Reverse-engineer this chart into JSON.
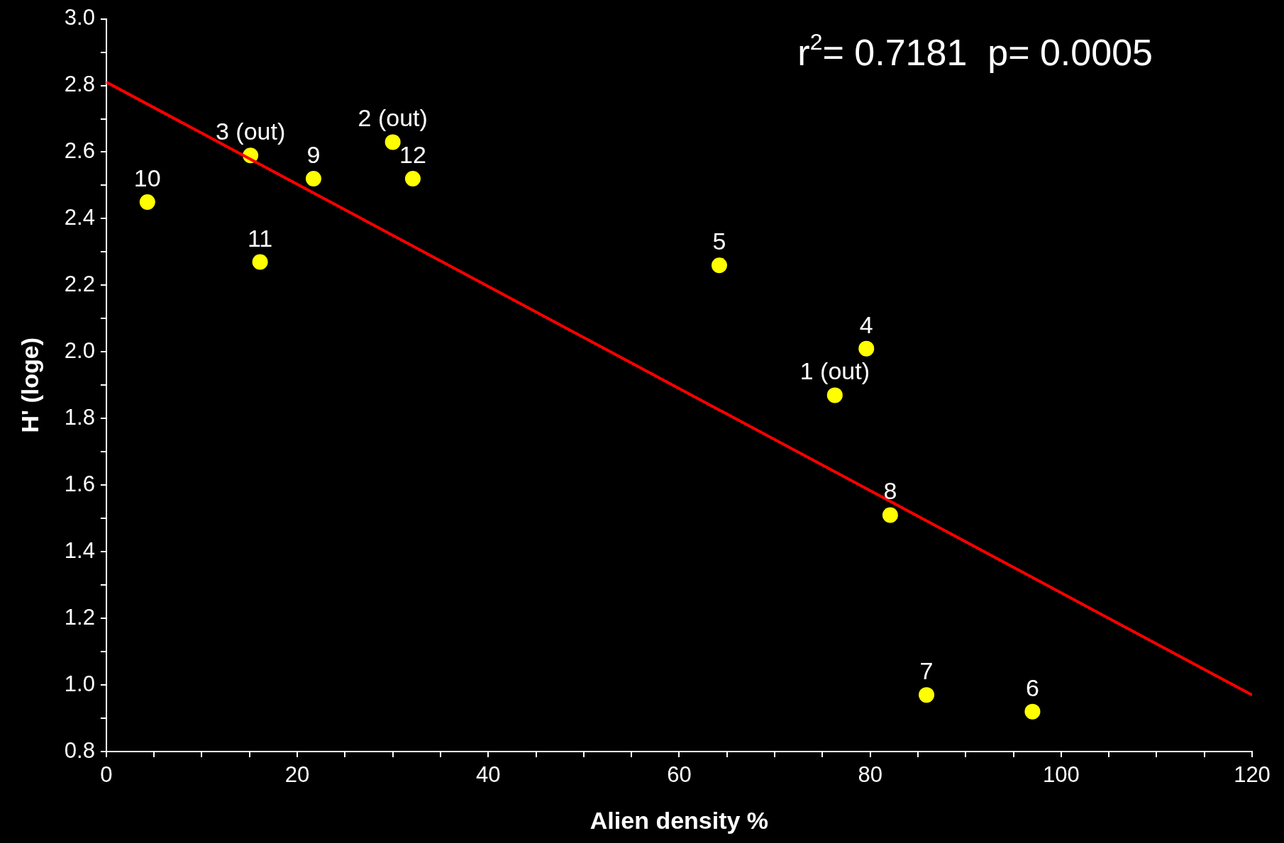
{
  "chart_data": {
    "type": "scatter",
    "xlabel": "Alien density %",
    "ylabel": "H' (loge)",
    "xlim": [
      0,
      120
    ],
    "ylim": [
      0.8,
      3.0
    ],
    "xticks": [
      0,
      {
        "value": 5,
        "label": null
      },
      {
        "value": 10,
        "label": null
      },
      {
        "value": 15,
        "label": null
      },
      20,
      {
        "value": 25,
        "label": null
      },
      {
        "value": 30,
        "label": null
      },
      {
        "value": 35,
        "label": null
      },
      40,
      {
        "value": 45,
        "label": null
      },
      {
        "value": 50,
        "label": null
      },
      {
        "value": 55,
        "label": null
      },
      60,
      {
        "value": 65,
        "label": null
      },
      {
        "value": 70,
        "label": null
      },
      {
        "value": 75,
        "label": null
      },
      80,
      {
        "value": 85,
        "label": null
      },
      {
        "value": 90,
        "label": null
      },
      {
        "value": 95,
        "label": null
      },
      100,
      {
        "value": 105,
        "label": null
      },
      {
        "value": 110,
        "label": null
      },
      {
        "value": 115,
        "label": null
      },
      120
    ],
    "yticks": [
      {
        "value": 0.8,
        "label": "0.8"
      },
      {
        "value": 0.9,
        "label": null
      },
      {
        "value": 1.0,
        "label": "1.0"
      },
      {
        "value": 1.1,
        "label": null
      },
      {
        "value": 1.2,
        "label": "1.2"
      },
      {
        "value": 1.3,
        "label": null
      },
      {
        "value": 1.4,
        "label": "1.4"
      },
      {
        "value": 1.5,
        "label": null
      },
      {
        "value": 1.6,
        "label": "1.6"
      },
      {
        "value": 1.7,
        "label": null
      },
      {
        "value": 1.8,
        "label": "1.8"
      },
      {
        "value": 1.9,
        "label": null
      },
      {
        "value": 2.0,
        "label": "2.0"
      },
      {
        "value": 2.1,
        "label": null
      },
      {
        "value": 2.2,
        "label": "2.2"
      },
      {
        "value": 2.3,
        "label": null
      },
      {
        "value": 2.4,
        "label": "2.4"
      },
      {
        "value": 2.5,
        "label": null
      },
      {
        "value": 2.6,
        "label": "2.6"
      },
      {
        "value": 2.7,
        "label": null
      },
      {
        "value": 2.8,
        "label": "2.8"
      },
      {
        "value": 2.9,
        "label": null
      },
      {
        "value": 3.0,
        "label": "3.0"
      }
    ],
    "grid": false,
    "legend": false,
    "marker": "circle",
    "series": [
      {
        "type": "line",
        "color": "#ff0000",
        "x": [
          0,
          120
        ],
        "values": [
          2.81,
          0.97
        ],
        "marker": "none"
      },
      {
        "color": "#ffff00",
        "x": [
          76.3,
          30.0,
          15.1,
          79.6,
          64.2,
          97.0,
          85.9,
          82.1,
          21.7,
          4.3,
          16.1,
          32.1
        ],
        "values": [
          1.87,
          2.63,
          2.59,
          2.01,
          2.26,
          0.92,
          0.97,
          1.51,
          2.52,
          2.45,
          2.27,
          2.52
        ]
      }
    ],
    "annotations": [
      "r$^{2}$= 0.7181  p= 0.0005",
      {
        "text": "1 (out)",
        "x": 76.3,
        "y": 1.87
      },
      {
        "text": "2 (out)",
        "x": 30.0,
        "y": 2.63
      },
      {
        "text": "3 (out)",
        "x": 15.1,
        "y": 2.59
      },
      {
        "text": "4",
        "x": 79.6,
        "y": 2.01
      },
      {
        "text": "5",
        "x": 64.2,
        "y": 2.26
      },
      {
        "text": "6",
        "x": 97.0,
        "y": 0.92
      },
      {
        "text": "7",
        "x": 85.9,
        "y": 0.97
      },
      {
        "text": "8",
        "x": 82.1,
        "y": 1.51
      },
      {
        "text": "9",
        "x": 21.7,
        "y": 2.52
      },
      {
        "text": "10",
        "x": 4.3,
        "y": 2.45
      },
      {
        "text": "11",
        "x": 16.1,
        "y": 2.27
      },
      {
        "text": "12",
        "x": 32.1,
        "y": 2.52
      }
    ]
  }
}
